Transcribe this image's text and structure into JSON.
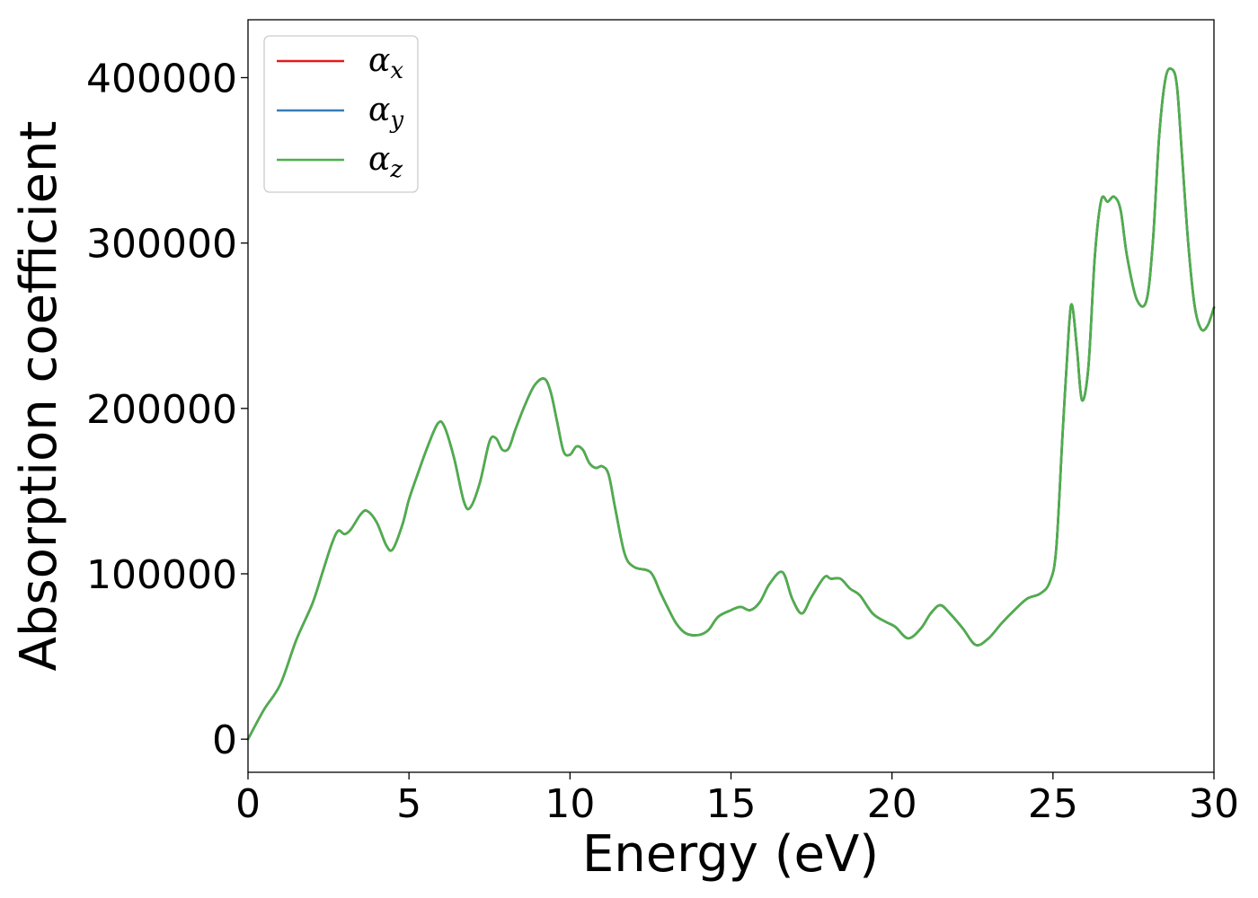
{
  "chart_data": {
    "type": "line",
    "xlabel": "Energy (eV)",
    "ylabel": "Absorption coefficient",
    "xlim": [
      0,
      30
    ],
    "ylim": [
      -20000,
      435000
    ],
    "xticks": [
      0,
      5,
      10,
      15,
      20,
      25,
      30
    ],
    "yticks": [
      0,
      100000,
      200000,
      300000,
      400000
    ],
    "grid": false,
    "legend_position": "top-left",
    "legend": [
      {
        "base": "α",
        "sub": "x",
        "color": "#e41a1c"
      },
      {
        "base": "α",
        "sub": "y",
        "color": "#377eb8"
      },
      {
        "base": "α",
        "sub": "z",
        "color": "#4daf4a"
      }
    ],
    "x": [
      0.0,
      0.5,
      1.0,
      1.5,
      2.0,
      2.3,
      2.6,
      2.8,
      3.0,
      3.2,
      3.5,
      3.7,
      4.0,
      4.3,
      4.5,
      4.8,
      5.0,
      5.3,
      5.6,
      5.9,
      6.1,
      6.4,
      6.7,
      6.9,
      7.2,
      7.5,
      7.7,
      7.9,
      8.1,
      8.3,
      8.6,
      8.9,
      9.2,
      9.4,
      9.6,
      9.8,
      10.0,
      10.2,
      10.4,
      10.6,
      10.8,
      11.0,
      11.2,
      11.4,
      11.7,
      12.0,
      12.5,
      12.8,
      13.0,
      13.3,
      13.6,
      14.0,
      14.3,
      14.6,
      15.0,
      15.3,
      15.6,
      15.9,
      16.2,
      16.6,
      16.9,
      17.2,
      17.5,
      17.9,
      18.1,
      18.4,
      18.7,
      19.0,
      19.4,
      19.8,
      20.1,
      20.5,
      20.9,
      21.2,
      21.5,
      21.8,
      22.2,
      22.6,
      23.0,
      23.4,
      23.8,
      24.2,
      24.6,
      24.9,
      25.1,
      25.3,
      25.5,
      25.6,
      25.75,
      25.9,
      26.1,
      26.3,
      26.5,
      26.7,
      26.9,
      27.1,
      27.3,
      27.6,
      27.9,
      28.1,
      28.3,
      28.5,
      28.7,
      28.85,
      29.0,
      29.2,
      29.4,
      29.6,
      29.8,
      30.0
    ],
    "series": [
      {
        "name": "α_x",
        "color": "#e41a1c",
        "values": [
          0,
          18000,
          33000,
          60000,
          82000,
          100000,
          118000,
          126000,
          124000,
          127000,
          136000,
          138000,
          131000,
          117000,
          115000,
          130000,
          145000,
          162000,
          178000,
          191000,
          189000,
          170000,
          144000,
          140000,
          155000,
          180000,
          182000,
          175000,
          176000,
          187000,
          202000,
          214000,
          218000,
          210000,
          192000,
          174000,
          172000,
          177000,
          175000,
          167000,
          164000,
          165000,
          160000,
          140000,
          112000,
          104000,
          101000,
          89000,
          81000,
          70000,
          64000,
          63000,
          66000,
          74000,
          78000,
          80000,
          78000,
          83000,
          94000,
          101000,
          85000,
          76000,
          86000,
          98000,
          97000,
          97000,
          91000,
          87000,
          76000,
          71000,
          68000,
          61000,
          67000,
          76000,
          81000,
          76000,
          67000,
          57000,
          61000,
          70000,
          78000,
          85000,
          88000,
          95000,
          115000,
          185000,
          250000,
          262000,
          235000,
          205000,
          225000,
          292000,
          326000,
          325000,
          328000,
          320000,
          292000,
          266000,
          265000,
          300000,
          365000,
          400000,
          405000,
          395000,
          355000,
          300000,
          262000,
          248000,
          250000,
          261000
        ]
      },
      {
        "name": "α_y",
        "color": "#377eb8",
        "values": [
          0,
          18000,
          33000,
          60000,
          82000,
          100000,
          118000,
          126000,
          124000,
          127000,
          136000,
          138000,
          131000,
          117000,
          115000,
          130000,
          145000,
          162000,
          178000,
          191000,
          189000,
          170000,
          144000,
          140000,
          155000,
          180000,
          182000,
          175000,
          176000,
          187000,
          202000,
          214000,
          218000,
          210000,
          192000,
          174000,
          172000,
          177000,
          175000,
          167000,
          164000,
          165000,
          160000,
          140000,
          112000,
          104000,
          101000,
          89000,
          81000,
          70000,
          64000,
          63000,
          66000,
          74000,
          78000,
          80000,
          78000,
          83000,
          94000,
          101000,
          85000,
          76000,
          86000,
          98000,
          97000,
          97000,
          91000,
          87000,
          76000,
          71000,
          68000,
          61000,
          67000,
          76000,
          81000,
          76000,
          67000,
          57000,
          61000,
          70000,
          78000,
          85000,
          88000,
          95000,
          115000,
          185000,
          250000,
          262000,
          235000,
          205000,
          225000,
          292000,
          326000,
          325000,
          328000,
          320000,
          292000,
          266000,
          265000,
          300000,
          365000,
          400000,
          405000,
          395000,
          355000,
          300000,
          262000,
          248000,
          250000,
          261000
        ]
      },
      {
        "name": "α_z",
        "color": "#4daf4a",
        "values": [
          0,
          18000,
          33000,
          60000,
          82000,
          100000,
          118000,
          126000,
          124000,
          127000,
          136000,
          138000,
          131000,
          117000,
          115000,
          130000,
          145000,
          162000,
          178000,
          191000,
          189000,
          170000,
          144000,
          140000,
          155000,
          180000,
          182000,
          175000,
          176000,
          187000,
          202000,
          214000,
          218000,
          210000,
          192000,
          174000,
          172000,
          177000,
          175000,
          167000,
          164000,
          165000,
          160000,
          140000,
          112000,
          104000,
          101000,
          89000,
          81000,
          70000,
          64000,
          63000,
          66000,
          74000,
          78000,
          80000,
          78000,
          83000,
          94000,
          101000,
          85000,
          76000,
          86000,
          98000,
          97000,
          97000,
          91000,
          87000,
          76000,
          71000,
          68000,
          61000,
          67000,
          76000,
          81000,
          76000,
          67000,
          57000,
          61000,
          70000,
          78000,
          85000,
          88000,
          95000,
          115000,
          185000,
          250000,
          262000,
          235000,
          205000,
          225000,
          292000,
          326000,
          325000,
          328000,
          320000,
          292000,
          266000,
          265000,
          300000,
          365000,
          400000,
          405000,
          395000,
          355000,
          300000,
          262000,
          248000,
          250000,
          261000
        ]
      }
    ]
  }
}
